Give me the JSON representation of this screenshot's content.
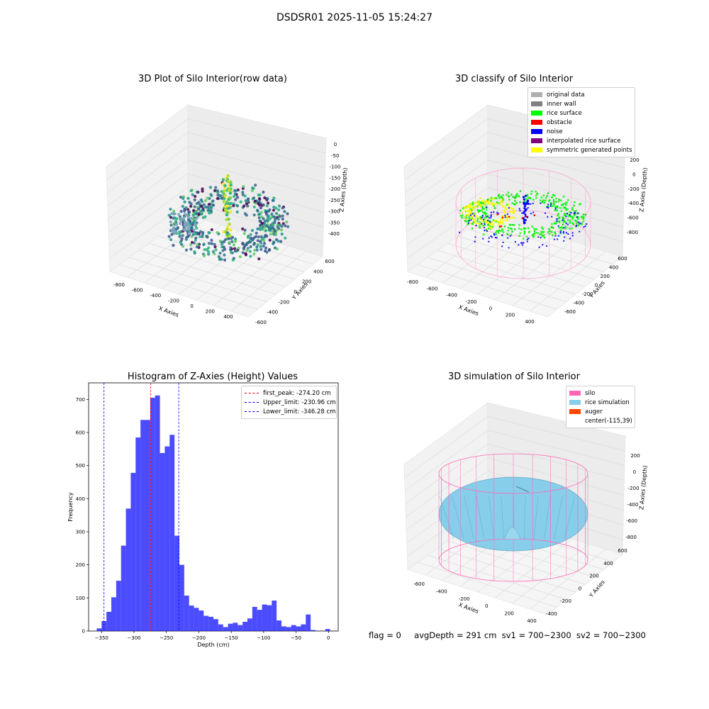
{
  "suptitle": "DSDSR01 2025-11-05 15:24:27",
  "panels": {
    "raw": {
      "title": "3D Plot of Silo Interior(row data)",
      "xlabel": "X Axies",
      "ylabel": "Y Axies",
      "zlabel": "Z Axies (Depth)",
      "xticks": [
        "-800",
        "-600",
        "-400",
        "-200",
        "0",
        "200",
        "400"
      ],
      "yticks": [
        "-600",
        "-400",
        "-200",
        "0",
        "200",
        "400",
        "600"
      ],
      "zticks": [
        "0",
        "-50",
        "-100",
        "-150",
        "-200",
        "-250",
        "-300",
        "-350",
        "-400"
      ]
    },
    "classify": {
      "title": "3D classify of Silo Interior",
      "xlabel": "X Axies",
      "ylabel": "Y Axies",
      "zlabel": "Z Axies (Depth)",
      "xticks": [
        "-800",
        "-600",
        "-400",
        "-200",
        "0",
        "200",
        "400"
      ],
      "yticks": [
        "-600",
        "-400",
        "-200",
        "0",
        "200",
        "400",
        "600"
      ],
      "zticks": [
        "200",
        "0",
        "-200",
        "-400",
        "-600",
        "-800"
      ],
      "legend": [
        {
          "label": "original data",
          "color": "#b0b0b0"
        },
        {
          "label": "inner wall",
          "color": "#808080"
        },
        {
          "label": "rice surface",
          "color": "#00ff00"
        },
        {
          "label": "obstacle",
          "color": "#ff0000"
        },
        {
          "label": "noise",
          "color": "#0000ff"
        },
        {
          "label": "interpolated rice surface",
          "color": "#800080"
        },
        {
          "label": "symmetric generated points",
          "color": "#ffff00"
        }
      ]
    },
    "simulation": {
      "title": "3D simulation of Silo Interior",
      "xlabel": "X Axies",
      "ylabel": "Y Axies",
      "zlabel": "Z Axies (Depth)",
      "xticks": [
        "-600",
        "-400",
        "-200",
        "0",
        "200",
        "400"
      ],
      "yticks": [
        "-400",
        "-200",
        "0",
        "200",
        "400",
        "600"
      ],
      "zticks": [
        "200",
        "0",
        "-200",
        "-400",
        "-600",
        "-800"
      ],
      "legend": [
        {
          "label": "silo",
          "color": "#ff69b4"
        },
        {
          "label": "rice simulation",
          "color": "#87ceeb"
        },
        {
          "label": "auger",
          "color": "#ff4500"
        },
        {
          "label": "center(-115,39)",
          "color": ""
        }
      ]
    }
  },
  "chart_data": {
    "type": "bar",
    "title": "Histogram of Z-Axies (Height) Values",
    "xlabel": "Depth (cm)",
    "ylabel": "Frequency",
    "xlim": [
      -370,
      15
    ],
    "ylim": [
      0,
      750
    ],
    "xticks": [
      -350,
      -300,
      -250,
      -200,
      -150,
      -100,
      -50,
      0
    ],
    "yticks": [
      0,
      100,
      200,
      300,
      400,
      500,
      600,
      700
    ],
    "bin_width": 7.5,
    "bins": [
      {
        "x0": -357.5,
        "value": 8
      },
      {
        "x0": -350.0,
        "value": 30
      },
      {
        "x0": -342.5,
        "value": 58
      },
      {
        "x0": -335.0,
        "value": 102
      },
      {
        "x0": -327.5,
        "value": 152
      },
      {
        "x0": -320.0,
        "value": 258
      },
      {
        "x0": -312.5,
        "value": 370
      },
      {
        "x0": -305.0,
        "value": 478
      },
      {
        "x0": -297.5,
        "value": 585
      },
      {
        "x0": -290.0,
        "value": 638
      },
      {
        "x0": -282.5,
        "value": 638
      },
      {
        "x0": -275.0,
        "value": 705
      },
      {
        "x0": -267.5,
        "value": 712
      },
      {
        "x0": -260.0,
        "value": 538
      },
      {
        "x0": -252.5,
        "value": 558
      },
      {
        "x0": -245.0,
        "value": 593
      },
      {
        "x0": -237.5,
        "value": 288
      },
      {
        "x0": -230.0,
        "value": 200
      },
      {
        "x0": -222.5,
        "value": 107
      },
      {
        "x0": -215.0,
        "value": 77
      },
      {
        "x0": -207.5,
        "value": 70
      },
      {
        "x0": -200.0,
        "value": 62
      },
      {
        "x0": -192.5,
        "value": 46
      },
      {
        "x0": -185.0,
        "value": 43
      },
      {
        "x0": -177.5,
        "value": 36
      },
      {
        "x0": -170.0,
        "value": 20
      },
      {
        "x0": -162.5,
        "value": 12
      },
      {
        "x0": -155.0,
        "value": 22
      },
      {
        "x0": -147.5,
        "value": 25
      },
      {
        "x0": -140.0,
        "value": 18
      },
      {
        "x0": -132.5,
        "value": 28
      },
      {
        "x0": -125.0,
        "value": 38
      },
      {
        "x0": -117.5,
        "value": 73
      },
      {
        "x0": -110.0,
        "value": 64
      },
      {
        "x0": -102.5,
        "value": 80
      },
      {
        "x0": -95.0,
        "value": 78
      },
      {
        "x0": -87.5,
        "value": 92
      },
      {
        "x0": -80.0,
        "value": 32
      },
      {
        "x0": -72.5,
        "value": 14
      },
      {
        "x0": -65.0,
        "value": 12
      },
      {
        "x0": -57.5,
        "value": 18
      },
      {
        "x0": -50.0,
        "value": 14
      },
      {
        "x0": -42.5,
        "value": 20
      },
      {
        "x0": -35.0,
        "value": 50
      },
      {
        "x0": -27.5,
        "value": 3
      },
      {
        "x0": -20.0,
        "value": 0
      },
      {
        "x0": -12.5,
        "value": 0
      },
      {
        "x0": -5.0,
        "value": 6
      }
    ],
    "bar_color": "#0000ff",
    "vlines": [
      {
        "label": "first_peak: -274.20 cm",
        "x": -274.2,
        "color": "#ff0000"
      },
      {
        "label": "Upper_limit: -230.96 cm",
        "x": -230.96,
        "color": "#0000ff"
      },
      {
        "label": "Lower_limit: -346.28 cm",
        "x": -346.28,
        "color": "#0000ff"
      }
    ],
    "legend_position": "top-right"
  },
  "footer": {
    "flag": "flag = 0",
    "avg": "avgDepth = 291 cm",
    "sv1": "sv1 = 700~2300",
    "sv2": "sv2 = 700~2300"
  }
}
